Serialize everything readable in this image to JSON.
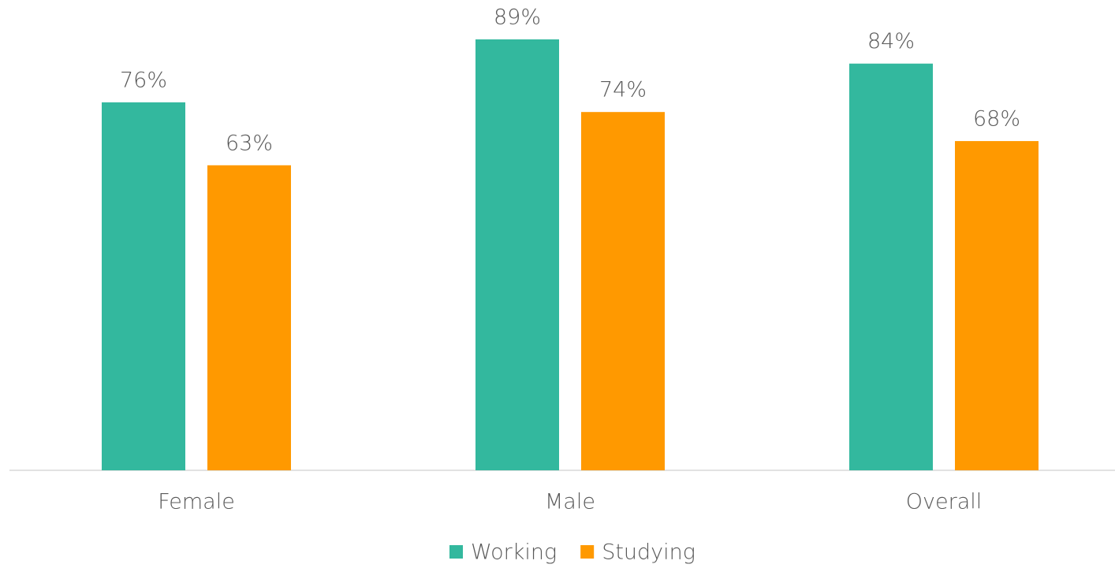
{
  "chart_data": {
    "type": "bar",
    "categories": [
      "Female",
      "Male",
      "Overall"
    ],
    "series": [
      {
        "name": "Working",
        "color": "#33b89e",
        "values": [
          76,
          89,
          84
        ],
        "value_labels": [
          "76%",
          "89%",
          "84%"
        ]
      },
      {
        "name": "Studying",
        "color": "#ff9900",
        "values": [
          63,
          74,
          68
        ],
        "value_labels": [
          "63%",
          "74%",
          "68%"
        ]
      }
    ],
    "legend": "bottom"
  }
}
